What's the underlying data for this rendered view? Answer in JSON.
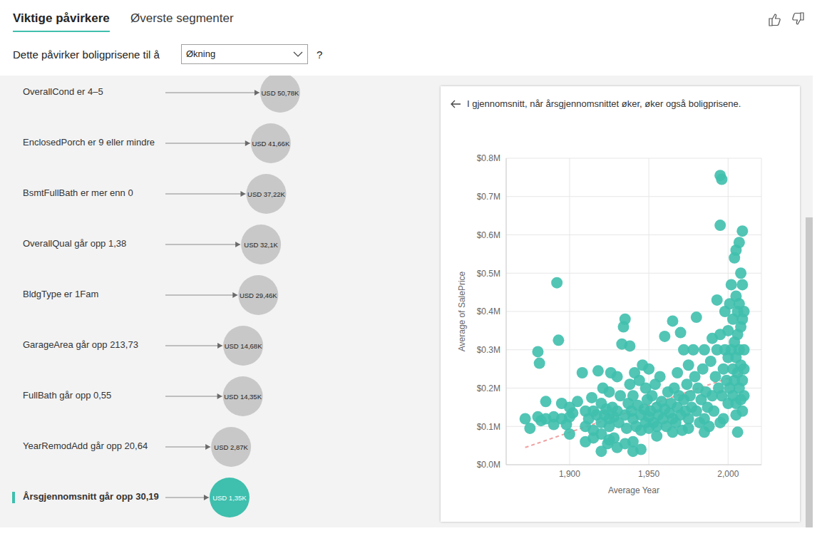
{
  "tabs": [
    "Viktige påvirkere",
    "Øverste segmenter"
  ],
  "active_tab": 0,
  "question": {
    "label": "Dette påvirker boligprisene til å",
    "selected": "Økning",
    "help": "?"
  },
  "influencers": {
    "labels": [
      "OverallCond er 4–5",
      "EnclosedPorch er 9 eller mindre",
      "BsmtFullBath er mer enn 0",
      "OverallQual går opp 1,38",
      "BldgType er 1Fam",
      "GarageArea går opp 213,73",
      "FullBath går opp 0,55",
      "YearRemodAdd går opp 20,64",
      "Årsgjennomsnitt går opp 30,19"
    ],
    "values": [
      50780,
      41660,
      37220,
      32100,
      29460,
      14680,
      14350,
      2870,
      1350
    ],
    "value_labels": [
      "USD 50,78K",
      "USD 41,66K",
      "USD 37,22K",
      "USD 32,1K",
      "USD 29,46K",
      "USD 14,68K",
      "USD 14,35K",
      "USD 2,87K",
      "USD 1,35K"
    ],
    "selected": 8
  },
  "chart_data": {
    "type": "scatter",
    "title": "I gjennomsnitt, når årsgjennomsnittet øker, øker også boligprisene.",
    "x_label": "Average Year",
    "y_label": "Average of SalePrice",
    "color": "#3fbfad",
    "grid": true,
    "xlim": [
      1860,
      2021
    ],
    "xticks": [
      {
        "value": 1900,
        "label": "1,900"
      },
      {
        "value": 1950,
        "label": "1,950"
      },
      {
        "value": 2000,
        "label": "2,000"
      }
    ],
    "ylim": [
      0,
      800000
    ],
    "yticks": [
      {
        "value": 0,
        "label": "$0.0M"
      },
      {
        "value": 100000,
        "label": "$0.1M"
      },
      {
        "value": 200000,
        "label": "$0.2M"
      },
      {
        "value": 300000,
        "label": "$0.3M"
      },
      {
        "value": 400000,
        "label": "$0.4M"
      },
      {
        "value": 500000,
        "label": "$0.5M"
      },
      {
        "value": 600000,
        "label": "$0.6M"
      },
      {
        "value": 700000,
        "label": "$0.7M"
      },
      {
        "value": 800000,
        "label": "$0.8M"
      }
    ],
    "x": [
      1872,
      1875,
      1880,
      1880,
      1881,
      1882,
      1885,
      1885,
      1890,
      1890,
      1892,
      1893,
      1895,
      1895,
      1898,
      1900,
      1900,
      1900,
      1902,
      1905,
      1908,
      1910,
      1910,
      1910,
      1912,
      1914,
      1915,
      1915,
      1917,
      1918,
      1920,
      1920,
      1920,
      1921,
      1922,
      1923,
      1924,
      1925,
      1925,
      1925,
      1926,
      1927,
      1928,
      1928,
      1930,
      1930,
      1930,
      1931,
      1932,
      1933,
      1934,
      1935,
      1935,
      1936,
      1937,
      1938,
      1938,
      1939,
      1940,
      1940,
      1940,
      1941,
      1942,
      1943,
      1944,
      1945,
      1945,
      1946,
      1947,
      1948,
      1948,
      1949,
      1950,
      1950,
      1950,
      1951,
      1952,
      1953,
      1954,
      1955,
      1955,
      1956,
      1957,
      1958,
      1959,
      1960,
      1960,
      1961,
      1962,
      1963,
      1964,
      1965,
      1965,
      1966,
      1967,
      1968,
      1968,
      1969,
      1970,
      1970,
      1971,
      1972,
      1972,
      1973,
      1974,
      1975,
      1975,
      1976,
      1977,
      1978,
      1979,
      1980,
      1980,
      1981,
      1982,
      1983,
      1984,
      1985,
      1985,
      1986,
      1987,
      1988,
      1989,
      1990,
      1990,
      1991,
      1992,
      1993,
      1993,
      1994,
      1995,
      1995,
      1995,
      1996,
      1996,
      1997,
      1997,
      1998,
      1998,
      1999,
      2000,
      2000,
      2000,
      2001,
      2001,
      2002,
      2002,
      2003,
      2003,
      2003,
      2004,
      2004,
      2004,
      2005,
      2005,
      2005,
      2005,
      2006,
      2006,
      2006,
      2006,
      2007,
      2007,
      2007,
      2007,
      2008,
      2008,
      2008,
      2008,
      2009,
      2009,
      2009,
      2009,
      2009,
      2010,
      2010,
      2010,
      2010,
      1920,
      1940,
      1915,
      1925,
      1935,
      1945,
      1955,
      1965,
      1975,
      1985,
      1995,
      2005
    ],
    "values": [
      120000,
      95000,
      125000,
      295000,
      265000,
      115000,
      165000,
      120000,
      125000,
      105000,
      475000,
      325000,
      120000,
      160000,
      105000,
      80000,
      125000,
      150000,
      135000,
      165000,
      240000,
      140000,
      100000,
      60000,
      120000,
      175000,
      90000,
      140000,
      130000,
      245000,
      110000,
      160000,
      80000,
      200000,
      130000,
      145000,
      55000,
      120000,
      100000,
      190000,
      240000,
      150000,
      125000,
      70000,
      140000,
      230000,
      45000,
      110000,
      180000,
      315000,
      360000,
      380000,
      130000,
      95000,
      160000,
      310000,
      210000,
      140000,
      120000,
      180000,
      60000,
      240000,
      100000,
      155000,
      220000,
      130000,
      40000,
      260000,
      145000,
      110000,
      200000,
      170000,
      125000,
      95000,
      250000,
      140000,
      180000,
      110000,
      210000,
      150000,
      75000,
      130000,
      230000,
      165000,
      120000,
      335000,
      145000,
      100000,
      190000,
      135000,
      160000,
      375000,
      120000,
      200000,
      110000,
      240000,
      150000,
      180000,
      345000,
      130000,
      90000,
      300000,
      170000,
      140000,
      210000,
      120000,
      260000,
      180000,
      150000,
      300000,
      230000,
      385000,
      140000,
      200000,
      110000,
      170000,
      250000,
      120000,
      300000,
      190000,
      150000,
      100000,
      270000,
      330000,
      180000,
      140000,
      230000,
      300000,
      430000,
      200000,
      755000,
      625000,
      340000,
      745000,
      180000,
      250000,
      120000,
      300000,
      400000,
      220000,
      350000,
      160000,
      280000,
      420000,
      200000,
      300000,
      470000,
      250000,
      380000,
      180000,
      320000,
      540000,
      220000,
      440000,
      560000,
      280000,
      160000,
      400000,
      85000,
      240000,
      340000,
      580000,
      300000,
      200000,
      420000,
      500000,
      360000,
      260000,
      170000,
      610000,
      380000,
      470000,
      220000,
      140000,
      300000,
      180000,
      400000,
      250000,
      35000,
      35000,
      70000,
      65000,
      55000,
      90000,
      100000,
      85000,
      95000,
      85000,
      110000,
      130000
    ],
    "trend": {
      "x": [
        1872,
        2010
      ],
      "values": [
        45000,
        240000
      ],
      "color": "#f0a0a0",
      "line_style": "dashed"
    }
  }
}
